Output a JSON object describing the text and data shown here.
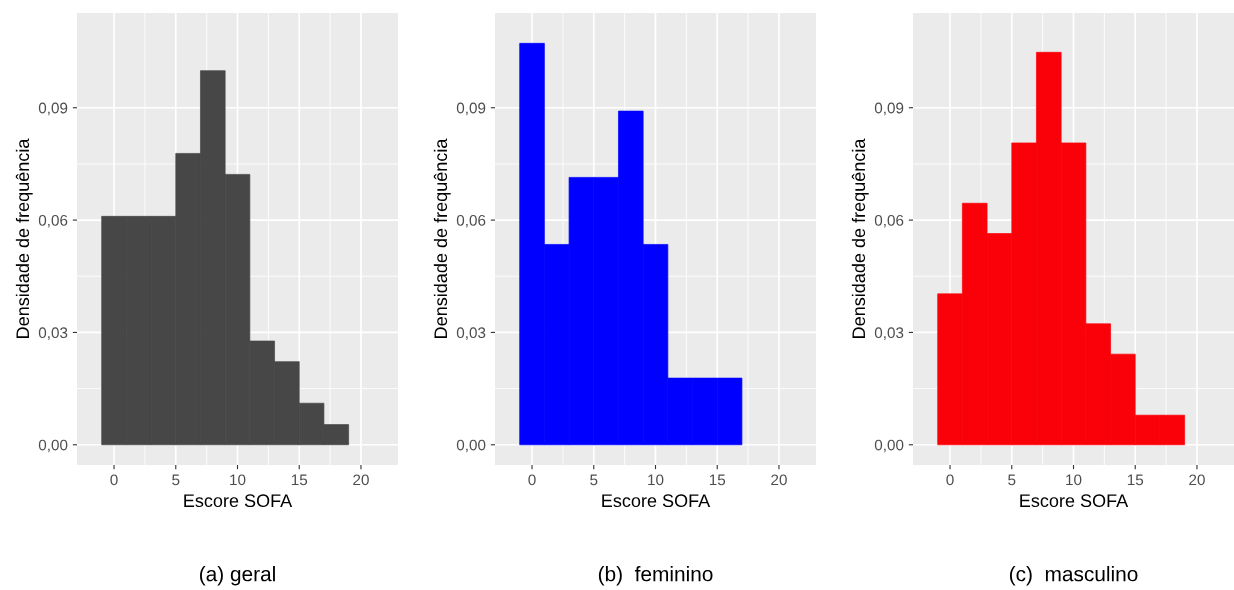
{
  "chart_data": [
    {
      "type": "histogram",
      "title": "(a) geral",
      "xlabel": "Escore SOFA",
      "ylabel": "Densidade de frequência",
      "color": "#474747",
      "bins": [
        -1,
        1,
        3,
        5,
        7,
        9,
        11,
        13,
        15,
        17,
        19
      ],
      "values": [
        0.061,
        0.061,
        0.061,
        0.0778,
        0.0999,
        0.0722,
        0.0277,
        0.0222,
        0.0111,
        0.0054
      ],
      "xlim": [
        -3.0,
        23.0
      ],
      "xticks": [
        0,
        5,
        10,
        15,
        20
      ],
      "ylim": [
        -0.0054,
        0.1153
      ],
      "yticks": [
        {
          "value": 0,
          "label": "0,00"
        },
        {
          "value": 0.03,
          "label": "0,03"
        },
        {
          "value": 0.06,
          "label": "0,06"
        },
        {
          "value": 0.09,
          "label": "0,09"
        }
      ],
      "grid": true
    },
    {
      "type": "histogram",
      "title": "(b)  feminino",
      "xlabel": "Escore SOFA",
      "ylabel": "Densidade de frequência",
      "color": "#0000ff",
      "bins": [
        -1,
        1,
        3,
        5,
        7,
        9,
        11,
        13,
        15,
        17
      ],
      "values": [
        0.1072,
        0.0535,
        0.0714,
        0.0714,
        0.0891,
        0.0535,
        0.0178,
        0.0178,
        0.0178
      ],
      "xlim": [
        -3.0,
        23.0
      ],
      "xticks": [
        0,
        5,
        10,
        15,
        20
      ],
      "ylim": [
        -0.0054,
        0.1153
      ],
      "yticks": [
        {
          "value": 0,
          "label": "0,00"
        },
        {
          "value": 0.03,
          "label": "0,03"
        },
        {
          "value": 0.06,
          "label": "0,06"
        },
        {
          "value": 0.09,
          "label": "0,09"
        }
      ],
      "grid": true
    },
    {
      "type": "histogram",
      "title": "(c)  masculino",
      "xlabel": "Escore SOFA",
      "ylabel": "Densidade de frequência",
      "color": "#fa0009",
      "bins": [
        -1,
        1,
        3,
        5,
        7,
        9,
        11,
        13,
        15,
        17,
        19
      ],
      "values": [
        0.0403,
        0.0645,
        0.0564,
        0.0806,
        0.1048,
        0.0806,
        0.0323,
        0.0242,
        0.0079,
        0.0079
      ],
      "xlim": [
        -3.0,
        23.0
      ],
      "xticks": [
        0,
        5,
        10,
        15,
        20
      ],
      "ylim": [
        -0.0054,
        0.1153
      ],
      "yticks": [
        {
          "value": 0,
          "label": "0,00"
        },
        {
          "value": 0.03,
          "label": "0,03"
        },
        {
          "value": 0.06,
          "label": "0,06"
        },
        {
          "value": 0.09,
          "label": "0,09"
        }
      ],
      "grid": true
    }
  ]
}
